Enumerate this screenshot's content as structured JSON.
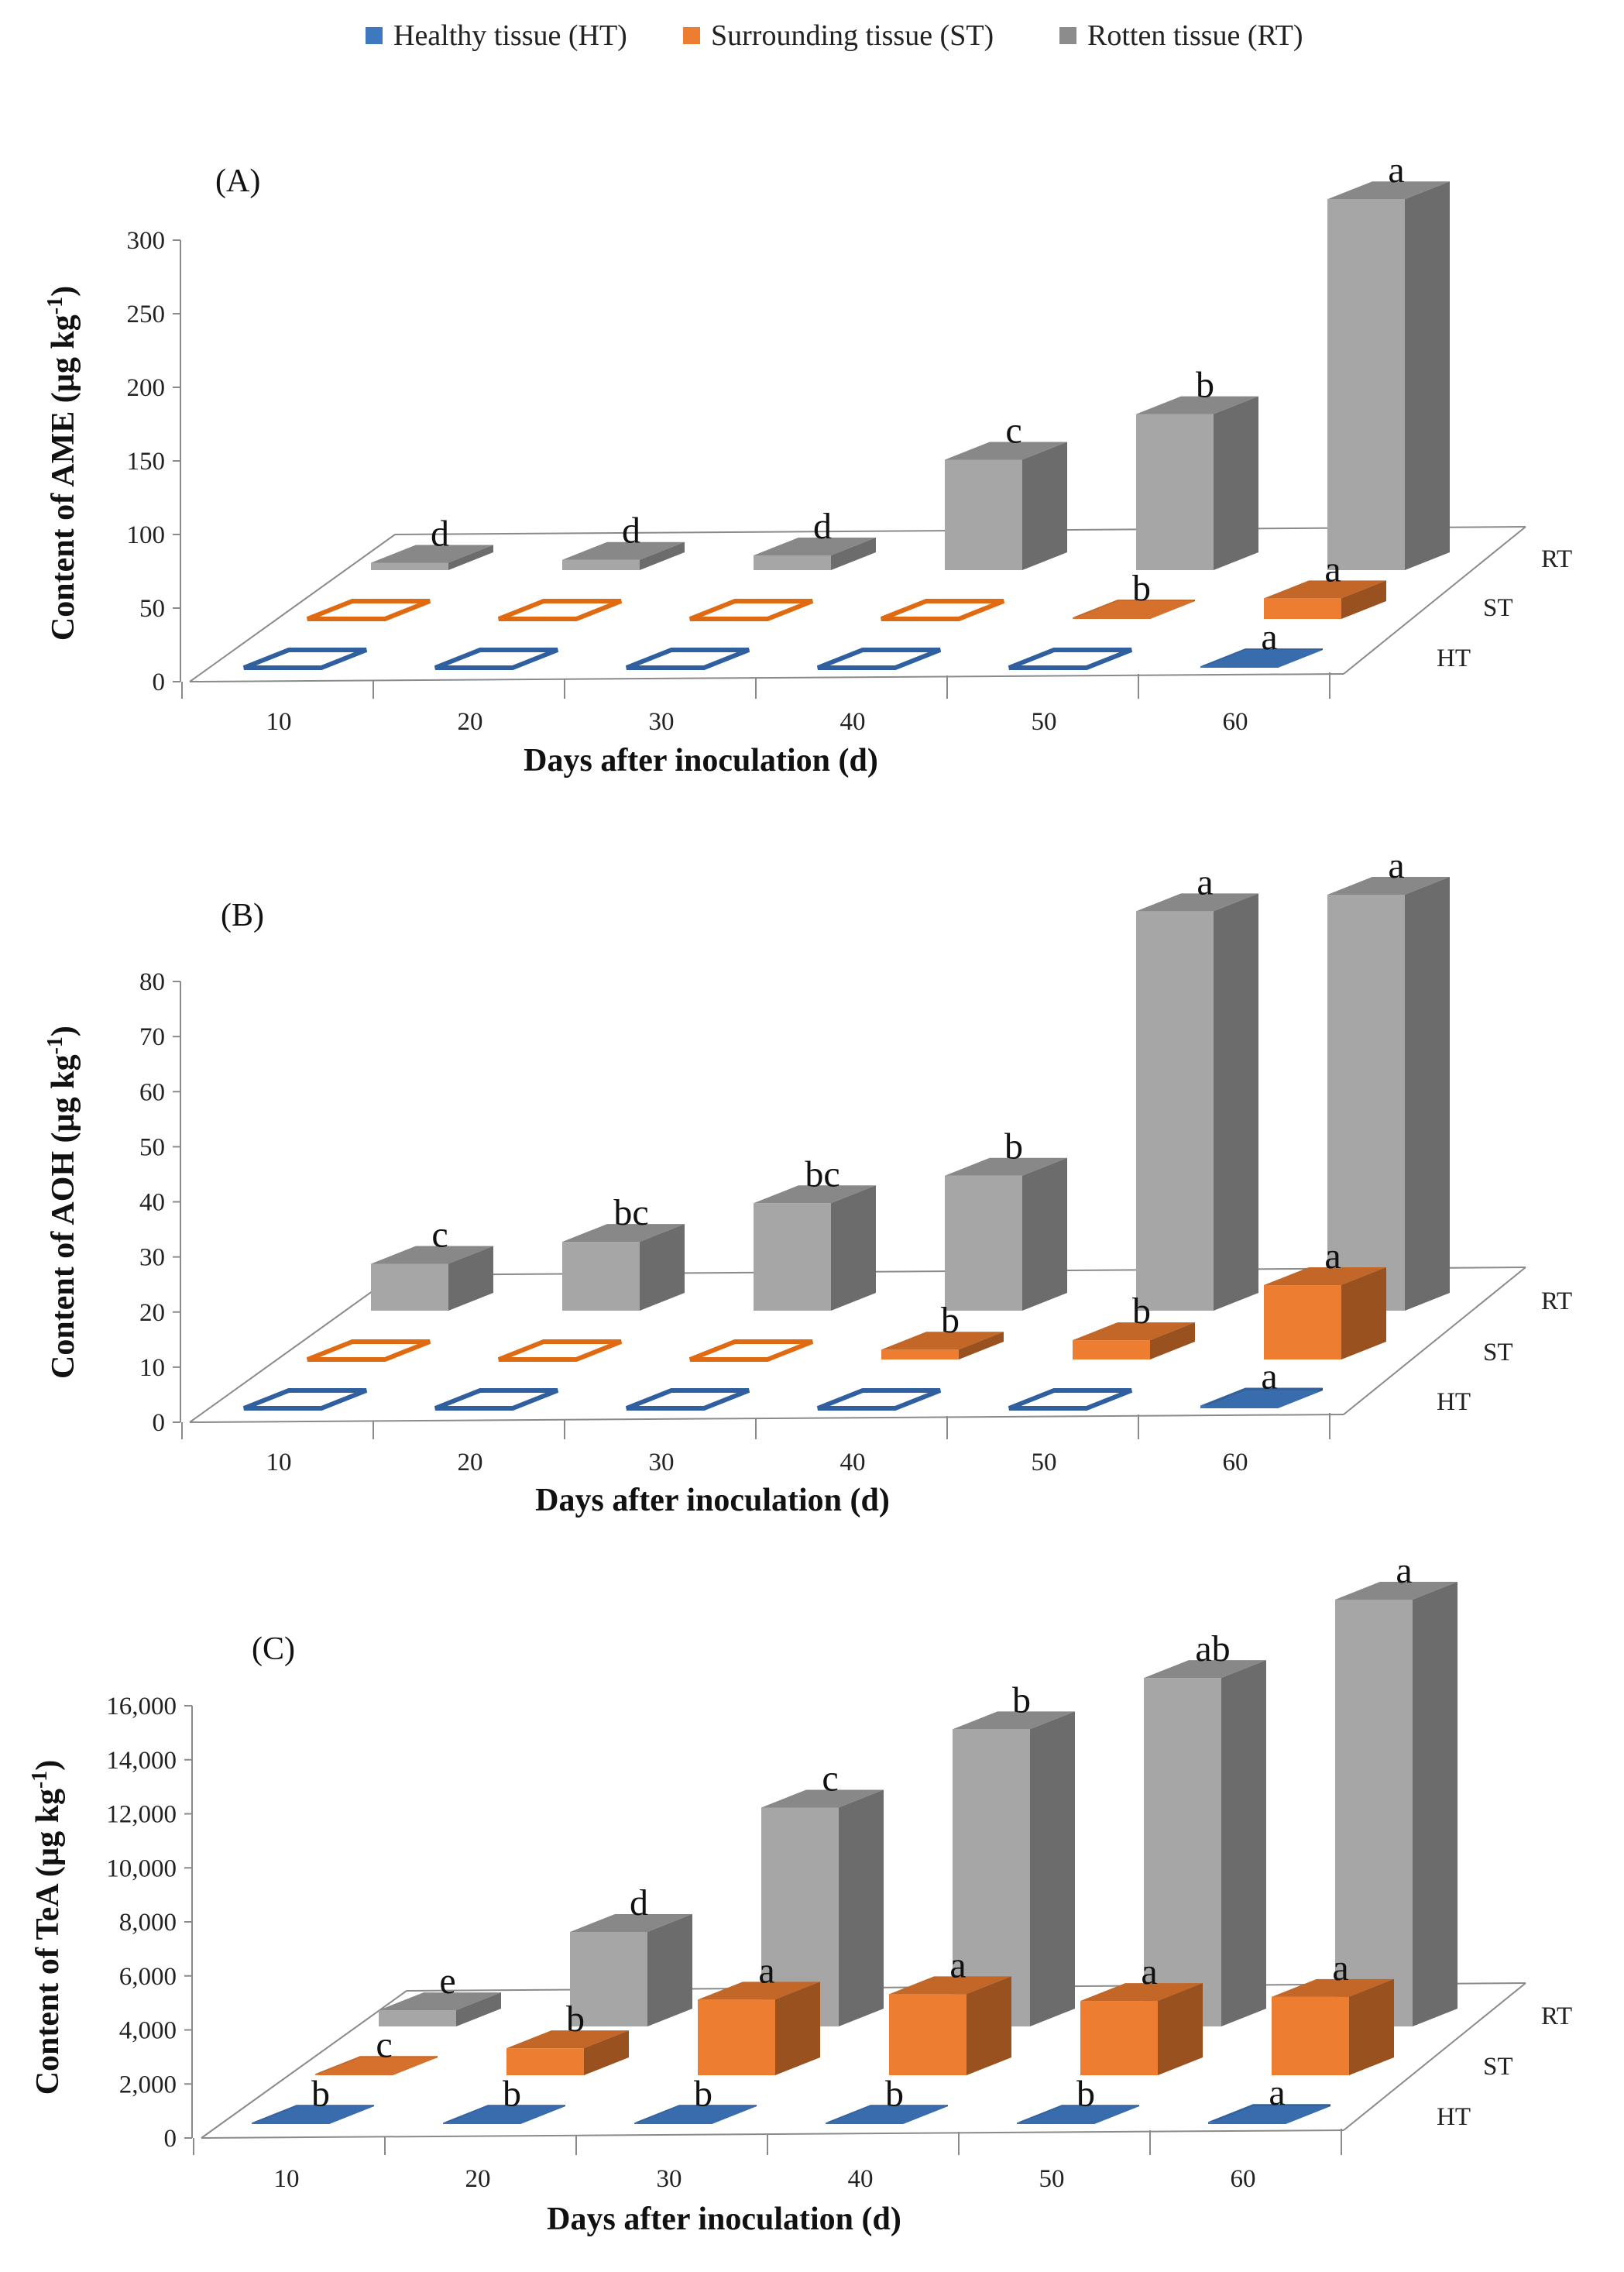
{
  "legend": [
    {
      "key": "HT",
      "label": "Healthy tissue (HT)",
      "color": "#3e78bf"
    },
    {
      "key": "ST",
      "label": "Surrounding tissue (ST)",
      "color": "#ed7d31"
    },
    {
      "key": "RT",
      "label": "Rotten tissue (RT)",
      "color": "#a6a6a6"
    }
  ],
  "chart_data": [
    {
      "type": "bar",
      "panel": "(A)",
      "title": "",
      "xlabel": "Days after inoculation (d)",
      "ylabel_text": "Content of AME (µg kg",
      "ylabel_sup": "-1",
      "ylabel_close": ")",
      "ylim": [
        0,
        300
      ],
      "yticks": [
        "0",
        "50",
        "100",
        "150",
        "200",
        "250",
        "300"
      ],
      "categories": [
        "10",
        "20",
        "30",
        "40",
        "50",
        "60"
      ],
      "depth_labels": [
        "HT",
        "ST",
        "RT"
      ],
      "series": [
        {
          "name": "Healthy tissue (HT)",
          "values": [
            0,
            0,
            0,
            0,
            0,
            1
          ],
          "letters": [
            "",
            "",
            "",
            "",
            "",
            "a"
          ]
        },
        {
          "name": "Surrounding tissue (ST)",
          "values": [
            0,
            0,
            0,
            0,
            1,
            14
          ],
          "letters": [
            "",
            "",
            "",
            "",
            "b",
            "a"
          ]
        },
        {
          "name": "Rotten tissue (RT)",
          "values": [
            5,
            7,
            10,
            75,
            106,
            252
          ],
          "letters": [
            "d",
            "d",
            "d",
            "c",
            "b",
            "a"
          ]
        }
      ]
    },
    {
      "type": "bar",
      "panel": "(B)",
      "title": "",
      "xlabel": "Days after inoculation (d)",
      "ylabel_text": "Content of AOH (µg kg",
      "ylabel_sup": "-1",
      "ylabel_close": ")",
      "ylim": [
        0,
        80
      ],
      "yticks": [
        "0",
        "10",
        "20",
        "30",
        "40",
        "50",
        "60",
        "70",
        "80"
      ],
      "categories": [
        "10",
        "20",
        "30",
        "40",
        "50",
        "60"
      ],
      "depth_labels": [
        "HT",
        "ST",
        "RT"
      ],
      "series": [
        {
          "name": "Healthy tissue (HT)",
          "values": [
            0,
            0,
            0,
            0,
            0,
            0.5
          ],
          "letters": [
            "",
            "",
            "",
            "",
            "",
            "a"
          ]
        },
        {
          "name": "Surrounding tissue (ST)",
          "values": [
            0,
            0,
            0,
            1.8,
            3.5,
            13.5
          ],
          "letters": [
            "",
            "",
            "",
            "b",
            "b",
            "a"
          ]
        },
        {
          "name": "Rotten tissue (RT)",
          "values": [
            8.5,
            12.5,
            19.5,
            24.5,
            72.5,
            75.5
          ],
          "letters": [
            "c",
            "bc",
            "bc",
            "b",
            "a",
            "a"
          ]
        }
      ]
    },
    {
      "type": "bar",
      "panel": "(C)",
      "title": "",
      "xlabel": "Days after inoculation (d)",
      "ylabel_text": "Content of TeA (µg kg",
      "ylabel_sup": "-1",
      "ylabel_close": ")",
      "ylim": [
        0,
        16000
      ],
      "yticks": [
        "0",
        "2,000",
        "4,000",
        "6,000",
        "8,000",
        "10,000",
        "12,000",
        "14,000",
        "16,000"
      ],
      "categories": [
        "10",
        "20",
        "30",
        "40",
        "50",
        "60"
      ],
      "depth_labels": [
        "HT",
        "ST",
        "RT"
      ],
      "series": [
        {
          "name": "Healthy tissue (HT)",
          "values": [
            50,
            50,
            50,
            50,
            50,
            80
          ],
          "letters": [
            "b",
            "b",
            "b",
            "b",
            "b",
            "a"
          ]
        },
        {
          "name": "Surrounding tissue (ST)",
          "values": [
            50,
            1000,
            2800,
            3000,
            2750,
            2900
          ],
          "letters": [
            "c",
            "b",
            "a",
            "a",
            "a",
            "a"
          ]
        },
        {
          "name": "Rotten tissue (RT)",
          "values": [
            600,
            3500,
            8100,
            11000,
            12900,
            15800
          ],
          "letters": [
            "e",
            "d",
            "c",
            "b",
            "ab",
            "a"
          ]
        }
      ]
    }
  ]
}
